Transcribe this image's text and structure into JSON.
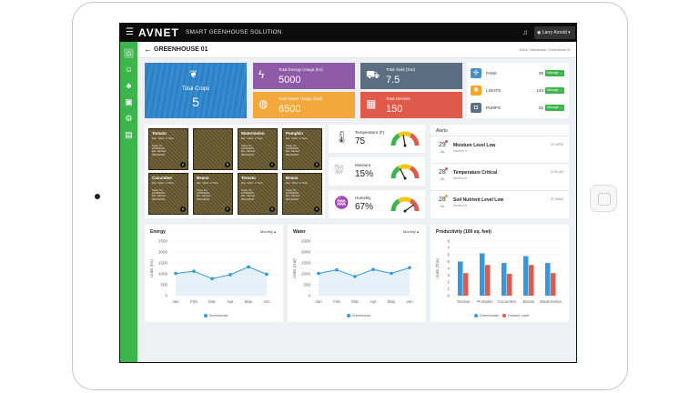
{
  "header": {
    "logo": "AVNET",
    "subtitle": "SMART GEENHOUSE SOLUTION",
    "user": "Larry Arnold",
    "menu_icon": "hamburger-icon",
    "bell_icon": "bell-icon"
  },
  "page": {
    "title": "GREENHOUSE 01",
    "breadcrumb": "Home / Dashboard / Greenhouse 01"
  },
  "sidebar": {
    "items": [
      "home-icon",
      "user-icon",
      "plant-icon",
      "building-icon",
      "gear-icon",
      "report-icon"
    ]
  },
  "crops": {
    "label": "Total Crops",
    "value": "5"
  },
  "stats": [
    {
      "label": "Total Energy Usage (Kv)",
      "value": "5000",
      "icon": "bolt-icon",
      "color": "#8e5ba8"
    },
    {
      "label": "Total Yield (Ton)",
      "value": "7.5",
      "icon": "yield-icon",
      "color": "#5c6f82"
    },
    {
      "label": "Total Water Usage (Gal)",
      "value": "6500",
      "icon": "water-drop-icon",
      "color": "#f2a83a"
    },
    {
      "label": "Total Devices",
      "value": "150",
      "icon": "chip-icon",
      "color": "#e05a4b"
    }
  ],
  "devices": [
    {
      "name": "FANS",
      "count": "05",
      "button": "Manage →",
      "icon": "fan-icon",
      "color": "#4a90c8"
    },
    {
      "name": "LIGHTS",
      "count": "143",
      "button": "Manage →",
      "icon": "bulb-icon",
      "color": "#f5a623"
    },
    {
      "name": "PUMPS",
      "count": "02",
      "button": "Manage →",
      "icon": "pump-icon",
      "color": "#5c6f82"
    }
  ],
  "plots": [
    {
      "name": "Tomato",
      "yield": "Est. Yield : 2 Tons",
      "sown": "Sown On",
      "sown_date": "01/05/2019",
      "harvest": "Est. Harvest",
      "harvest_date": "06/12/2019",
      "letter": "A"
    },
    {
      "name": "",
      "yield": "",
      "sown": "",
      "sown_date": "",
      "harvest": "",
      "harvest_date": "",
      "letter": "B"
    },
    {
      "name": "Watermelon",
      "yield": "Est. Yield : 2 Tons",
      "sown": "Sown On",
      "sown_date": "01/05/2019",
      "harvest": "Est. Harvest",
      "harvest_date": "06/12/2019",
      "letter": "C"
    },
    {
      "name": "Pumpkin",
      "yield": "Est. Yield : 2 Tons",
      "sown": "Sown On",
      "sown_date": "01/05/2019",
      "harvest": "Est. Harvest",
      "harvest_date": "06/12/2019",
      "letter": "D"
    },
    {
      "name": "Cucumber",
      "yield": "Est. Yield : 2 Tons",
      "sown": "Sown On",
      "sown_date": "01/05/2019",
      "harvest": "Est. Harvest",
      "harvest_date": "06/12/2019",
      "letter": "A"
    },
    {
      "name": "Beans",
      "yield": "Est. Yield : 2 Tons",
      "sown": "Sown On",
      "sown_date": "01/05/2019",
      "harvest": "Est. Harvest",
      "harvest_date": "06/12/2019",
      "letter": "E"
    },
    {
      "name": "Tomato",
      "yield": "Est. Yield : 2 Tons",
      "sown": "Sown On",
      "sown_date": "01/05/2019",
      "harvest": "Est. Harvest",
      "harvest_date": "06/12/2019",
      "letter": "G"
    },
    {
      "name": "Beans",
      "yield": "Est. Yield : 2 Tons",
      "sown": "Sown On",
      "sown_date": "01/05/2019",
      "harvest": "Est. Harvest",
      "harvest_date": "06/12/2019",
      "letter": "H"
    }
  ],
  "sensors": [
    {
      "label": "Temperature (F)",
      "value": "75",
      "icon": "thermometer-icon",
      "level": 0.45
    },
    {
      "label": "Moisture",
      "value": "15%",
      "icon": "moisture-icon",
      "level": 0.35
    },
    {
      "label": "Humidity",
      "value": "67%",
      "icon": "humidity-icon",
      "level": 0.8
    }
  ],
  "alerts": {
    "title": "Alerts",
    "items": [
      {
        "day": "29",
        "month": "JUL",
        "title": "Moisture Level Low",
        "section": "Section H",
        "time": "02:39PM",
        "color": "#e05a4b"
      },
      {
        "day": "28",
        "month": "JUL",
        "title": "Temperature Critical",
        "section": "Section A",
        "time": "11:53 AM",
        "color": "#e05a4b"
      },
      {
        "day": "28",
        "month": "JUL",
        "title": "Soil Nutrient Level Low",
        "section": "Section H",
        "time": "07:56AM",
        "color": "#f5a623"
      }
    ]
  },
  "chart_data": [
    {
      "type": "line",
      "title": "Energy",
      "dropdown": "Monthly",
      "x": [
        "Jan",
        "Feb",
        "Mar",
        "Apr",
        "May",
        "Jun"
      ],
      "series": [
        {
          "name": "Greenhouse",
          "values": [
            1020,
            1120,
            780,
            960,
            1320,
            980
          ],
          "color": "#3498db"
        }
      ],
      "ylabel": "Units (Kv)",
      "ylim": [
        0,
        2500
      ],
      "yticks": [
        "0",
        "500",
        "1000",
        "1500",
        "2000",
        "2500"
      ],
      "grid": true,
      "legend": "bottom"
    },
    {
      "type": "line",
      "title": "Water",
      "dropdown": "Monthly",
      "x": [
        "Jan",
        "Feb",
        "Mar",
        "Apr",
        "May",
        "Jun"
      ],
      "series": [
        {
          "name": "Greenhouse",
          "values": [
            1020,
            1180,
            880,
            1200,
            1020,
            1280
          ],
          "color": "#3498db"
        }
      ],
      "ylabel": "Units (Gal)",
      "ylim": [
        0,
        2500
      ],
      "yticks": [
        "0",
        "500",
        "1000",
        "1500",
        "2000",
        "2500"
      ],
      "grid": true,
      "legend": "bottom"
    },
    {
      "type": "bar",
      "title": "Productivity (100 sq. feet)",
      "categories": [
        "Tomato",
        "Pumpkin",
        "Cucumber",
        "Beans",
        "Watermelon"
      ],
      "series": [
        {
          "name": "Greenhouse",
          "values": [
            5,
            6.2,
            4.8,
            5.8,
            4.8
          ],
          "color": "#3498db"
        },
        {
          "name": "Outdoor Land",
          "values": [
            3.3,
            4.5,
            3.2,
            4.5,
            3.3
          ],
          "color": "#e05a4b"
        }
      ],
      "ylabel": "Units (Ton)",
      "ylim": [
        0,
        8
      ],
      "yticks": [
        "0",
        "1",
        "2",
        "3",
        "4",
        "5",
        "6",
        "7",
        "8"
      ],
      "grid": true,
      "legend": "bottom"
    }
  ]
}
